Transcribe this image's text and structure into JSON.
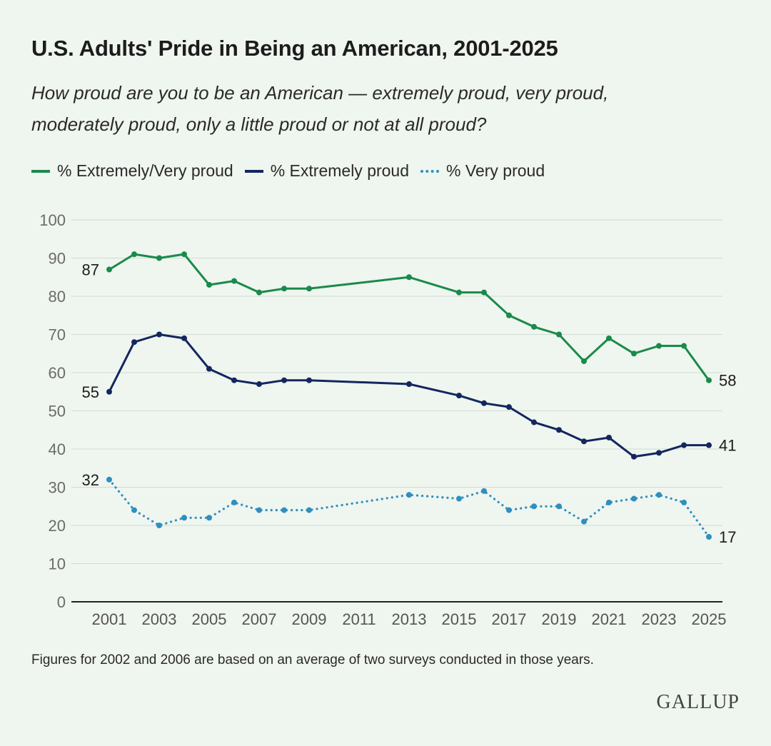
{
  "header": {
    "title": "U.S. Adults' Pride in Being an American, 2001-2025",
    "subtitle_line1": "How proud are you to be an American — extremely proud, very proud,",
    "subtitle_line2": "moderately proud, only a little proud or not at all proud?"
  },
  "legend": [
    {
      "label": "% Extremely/Very proud",
      "color": "#1a8a4a",
      "style": "solid"
    },
    {
      "label": "% Extremely proud",
      "color": "#13265e",
      "style": "solid"
    },
    {
      "label": "% Very proud",
      "color": "#2f8fbf",
      "style": "dotted"
    }
  ],
  "chart_data": {
    "type": "line",
    "title": "U.S. Adults' Pride in Being an American, 2001-2025",
    "xlabel": "",
    "ylabel": "",
    "ylim": [
      0,
      100
    ],
    "xlim": [
      2001,
      2025
    ],
    "y_ticks": [
      0,
      10,
      20,
      30,
      40,
      50,
      60,
      70,
      80,
      90,
      100
    ],
    "x_ticks": [
      2001,
      2003,
      2005,
      2007,
      2009,
      2011,
      2013,
      2015,
      2017,
      2019,
      2021,
      2023,
      2025
    ],
    "grid": true,
    "series": [
      {
        "name": "% Extremely/Very proud",
        "color": "#1a8a4a",
        "style": "solid",
        "x": [
          2001,
          2002,
          2003,
          2004,
          2005,
          2006,
          2007,
          2008,
          2009,
          2013,
          2015,
          2016,
          2017,
          2018,
          2019,
          2020,
          2021,
          2022,
          2023,
          2024,
          2025
        ],
        "values": [
          87,
          91,
          90,
          91,
          83,
          84,
          81,
          82,
          82,
          85,
          81,
          81,
          75,
          72,
          70,
          63,
          69,
          65,
          67,
          67,
          58
        ],
        "start_label": "87",
        "end_label": "58"
      },
      {
        "name": "% Extremely proud",
        "color": "#13265e",
        "style": "solid",
        "x": [
          2001,
          2002,
          2003,
          2004,
          2005,
          2006,
          2007,
          2008,
          2009,
          2013,
          2015,
          2016,
          2017,
          2018,
          2019,
          2020,
          2021,
          2022,
          2023,
          2024,
          2025
        ],
        "values": [
          55,
          68,
          70,
          69,
          61,
          58,
          57,
          58,
          58,
          57,
          54,
          52,
          51,
          47,
          45,
          42,
          43,
          38,
          39,
          41,
          41
        ],
        "start_label": "55",
        "end_label": "41"
      },
      {
        "name": "% Very proud",
        "color": "#2f8fbf",
        "style": "dotted",
        "x": [
          2001,
          2002,
          2003,
          2004,
          2005,
          2006,
          2007,
          2008,
          2009,
          2013,
          2015,
          2016,
          2017,
          2018,
          2019,
          2020,
          2021,
          2022,
          2023,
          2024,
          2025
        ],
        "values": [
          32,
          24,
          20,
          22,
          22,
          26,
          24,
          24,
          24,
          28,
          27,
          29,
          24,
          25,
          25,
          21,
          26,
          27,
          28,
          26,
          17
        ],
        "start_label": "32",
        "end_label": "17"
      }
    ]
  },
  "footnote": "Figures for 2002 and 2006 are based on an average of two surveys conducted in those years.",
  "brand": "GALLUP"
}
